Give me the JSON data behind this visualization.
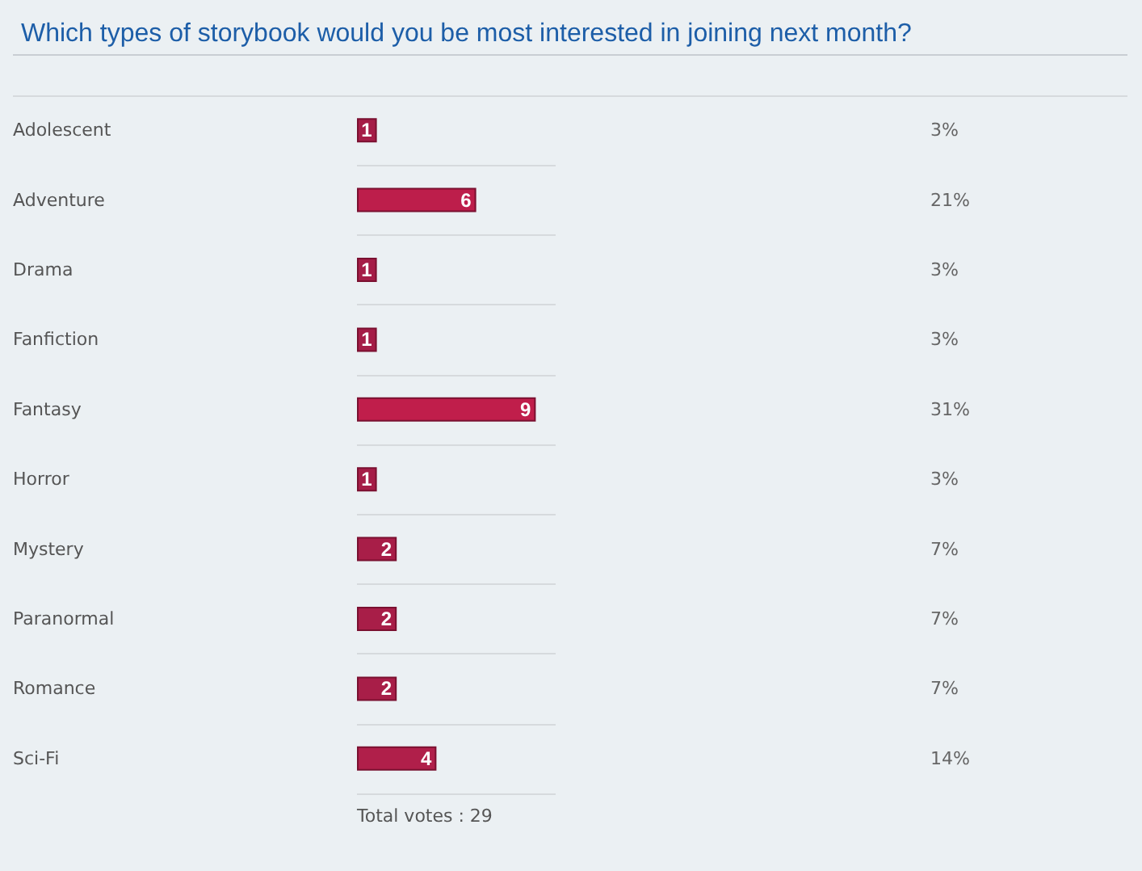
{
  "chart_data": {
    "type": "bar",
    "orientation": "horizontal",
    "title": "Which types of storybook would you be most interested in joining next month?",
    "categories": [
      "Adolescent",
      "Adventure",
      "Drama",
      "Fanfiction",
      "Fantasy",
      "Horror",
      "Mystery",
      "Paranormal",
      "Romance",
      "Sci-Fi"
    ],
    "values": [
      1,
      6,
      1,
      1,
      9,
      1,
      2,
      2,
      2,
      4
    ],
    "colors": [
      "#a51d47",
      "#bd1e4b",
      "#a51d47",
      "#a51d47",
      "#c01e4b",
      "#a51d47",
      "#a81e48",
      "#a81e48",
      "#a81e48",
      "#b01f4a"
    ],
    "data_labels": true,
    "grid": "y",
    "annotations": [
      "3%",
      "21%",
      "3%",
      "3%",
      "31%",
      "3%",
      "7%",
      "7%",
      "7%",
      "14%",
      "Total votes : 29"
    ]
  }
}
